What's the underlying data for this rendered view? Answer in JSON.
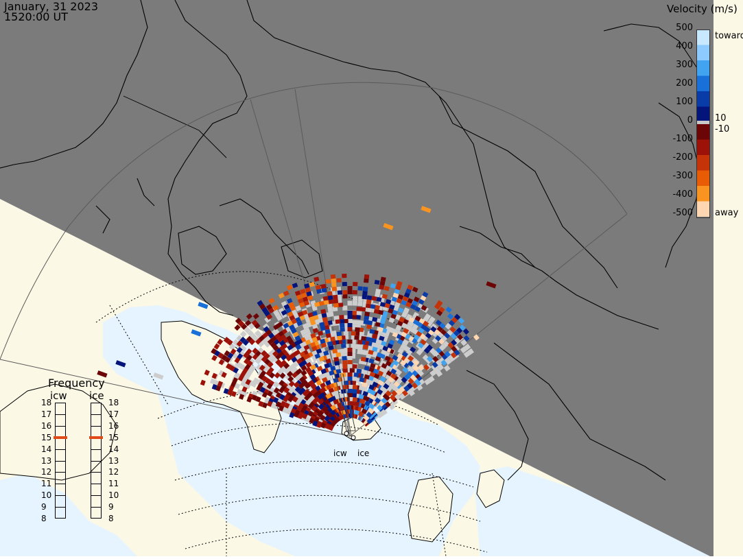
{
  "header": {
    "date": "January, 31 2023",
    "time": "1520:00 UT"
  },
  "colorbar": {
    "title": "Velocity (m/s)",
    "ticks": [
      "500",
      "400",
      "300",
      "200",
      "100",
      "0",
      "-100",
      "-200",
      "-300",
      "-400",
      "-500"
    ],
    "toward_label": "toward",
    "away_label": "away",
    "zero_plus": "10",
    "zero_minus": "-10",
    "toward_colors": [
      "#c8e8ff",
      "#8ccaff",
      "#42a4f0",
      "#1870d8",
      "#0a3ca8",
      "#03157a"
    ],
    "away_colors": [
      "#6c0606",
      "#9c1208",
      "#c43408",
      "#e85c06",
      "#fa9420",
      "#ffd6b2"
    ],
    "zero_color": "#c8c8c8"
  },
  "frequency": {
    "title": "Frequency",
    "ladders": [
      {
        "name": "icw",
        "selected": 15
      },
      {
        "name": "ice",
        "selected": 15
      }
    ],
    "levels": [
      "18",
      "17",
      "16",
      "15",
      "14",
      "13",
      "12",
      "11",
      "10",
      "9",
      "8"
    ],
    "marker_color": "#e04a18"
  },
  "radars": [
    {
      "name": "icw"
    },
    {
      "name": "ice"
    }
  ],
  "map": {
    "night_color": "#7b7b7b",
    "land_day": "#fbf8e6",
    "ocean_day": "#e6f4ff",
    "coast_color": "#000000"
  }
}
